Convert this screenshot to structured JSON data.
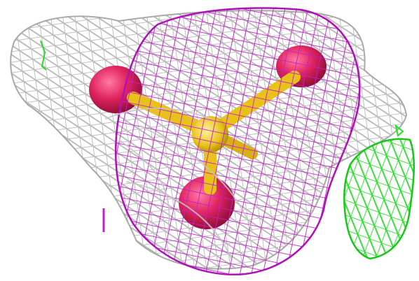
{
  "image": {
    "description_kind": "molecular-density-render",
    "colors": {
      "background": "#ffffff",
      "grey_mesh": "#b8b8b8",
      "magenta_mesh": "#c21fc9",
      "green_mesh": "#22e022",
      "oxygen_sphere": "#e0245e",
      "sulfur_core": "#e8c21a"
    },
    "objects": [
      "grey-density-mesh",
      "magenta-density-mesh",
      "green-density-mesh",
      "oxygen-sphere",
      "sulfur-atom",
      "magenta-tick-mark"
    ]
  }
}
